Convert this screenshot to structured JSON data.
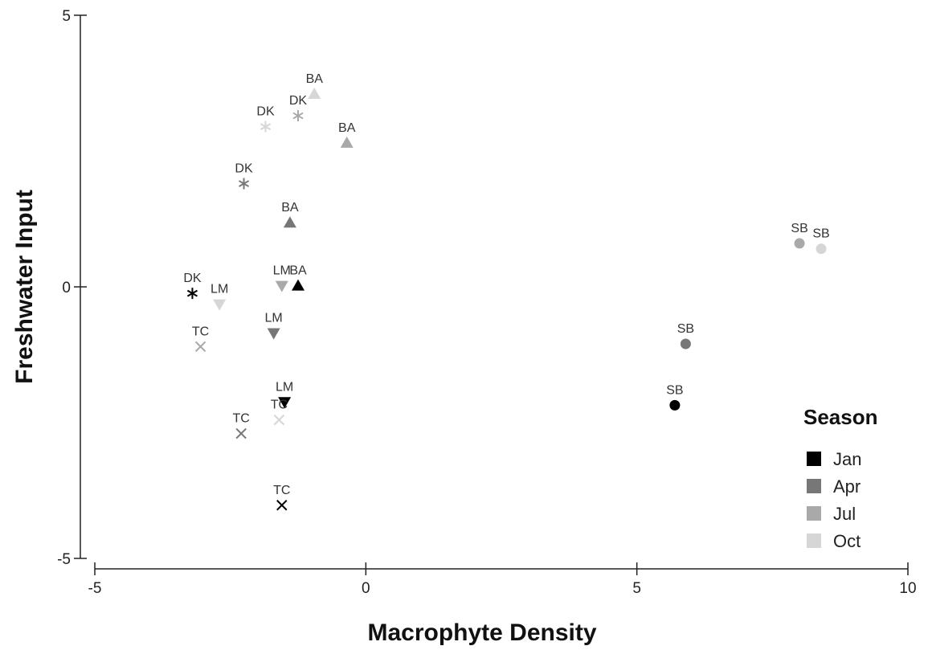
{
  "chart_data": {
    "type": "scatter",
    "title": "",
    "xlabel": "Macrophyte Density",
    "ylabel": "Freshwater Input",
    "xlim": [
      -5,
      10
    ],
    "ylim": [
      -5,
      5
    ],
    "x_ticks": [
      "-5",
      "0",
      "5",
      "10"
    ],
    "y_ticks": [
      "5",
      "0",
      "-5"
    ],
    "grid": false,
    "legend": {
      "title": "Season",
      "placement": "bottom-right",
      "entries": [
        {
          "label": "Jan",
          "color": "#000000"
        },
        {
          "label": "Apr",
          "color": "#777777"
        },
        {
          "label": "Jul",
          "color": "#a9a9a9"
        },
        {
          "label": "Oct",
          "color": "#d6d6d6"
        }
      ]
    },
    "series": [
      {
        "name": "Jan",
        "points": [
          {
            "x": -3.2,
            "y": -0.12,
            "site": "DK",
            "shape": "asterisk"
          },
          {
            "x": -1.25,
            "y": 0.02,
            "site": "BA",
            "shape": "triangle-up"
          },
          {
            "x": -1.5,
            "y": -2.12,
            "site": "LM",
            "shape": "triangle-down"
          },
          {
            "x": -1.55,
            "y": -4.02,
            "site": "TC",
            "shape": "cross"
          },
          {
            "x": 5.7,
            "y": -2.18,
            "site": "SB",
            "shape": "circle"
          }
        ]
      },
      {
        "name": "Apr",
        "points": [
          {
            "x": -2.25,
            "y": 1.9,
            "site": "DK",
            "shape": "asterisk"
          },
          {
            "x": -1.4,
            "y": 1.18,
            "site": "BA",
            "shape": "triangle-up"
          },
          {
            "x": -1.7,
            "y": -0.85,
            "site": "LM",
            "shape": "triangle-down"
          },
          {
            "x": -2.3,
            "y": -2.7,
            "site": "TC",
            "shape": "cross"
          },
          {
            "x": 5.9,
            "y": -1.05,
            "site": "SB",
            "shape": "circle"
          }
        ]
      },
      {
        "name": "Jul",
        "points": [
          {
            "x": -1.25,
            "y": 3.15,
            "site": "DK",
            "shape": "asterisk"
          },
          {
            "x": -0.35,
            "y": 2.65,
            "site": "BA",
            "shape": "triangle-up"
          },
          {
            "x": -1.55,
            "y": 0.02,
            "site": "LM",
            "shape": "triangle-down"
          },
          {
            "x": -3.05,
            "y": -1.1,
            "site": "TC",
            "shape": "cross"
          },
          {
            "x": 8.0,
            "y": 0.8,
            "site": "SB",
            "shape": "circle"
          }
        ]
      },
      {
        "name": "Oct",
        "points": [
          {
            "x": -1.85,
            "y": 2.95,
            "site": "DK",
            "shape": "asterisk"
          },
          {
            "x": -0.95,
            "y": 3.55,
            "site": "BA",
            "shape": "triangle-up"
          },
          {
            "x": -2.7,
            "y": -0.32,
            "site": "LM",
            "shape": "triangle-down"
          },
          {
            "x": -1.6,
            "y": -2.45,
            "site": "TC",
            "shape": "cross"
          },
          {
            "x": 8.4,
            "y": 0.7,
            "site": "SB",
            "shape": "circle"
          }
        ]
      }
    ]
  }
}
